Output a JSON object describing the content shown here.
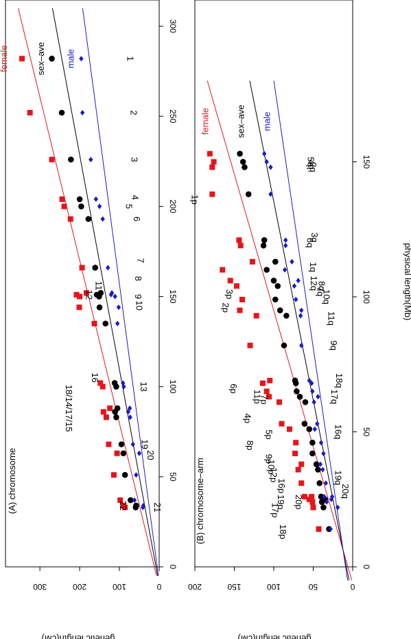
{
  "figure": {
    "xlabel": "physical length(Mb)",
    "ylabel": "genetic length(cM)"
  },
  "colors": {
    "female": "#e8141b",
    "sex_ave": "#000000",
    "male": "#1a1acc"
  },
  "legend": {
    "female": "female",
    "sex_ave": "sex–ave",
    "male": "male"
  },
  "chart_data": [
    {
      "type": "scatter",
      "title": "(A) chromosome",
      "xlabel": "physical length(Mb)",
      "ylabel": "genetic length(cM)",
      "xlim": [
        0,
        310
      ],
      "ylim": [
        0,
        390
      ],
      "xticks": [
        0,
        50,
        100,
        150,
        200,
        250,
        300
      ],
      "yticks": [
        0,
        100,
        200,
        300
      ],
      "series": [
        {
          "name": "female",
          "marker": "square",
          "fit": [
            12,
            1.105
          ],
          "x": [
            282,
            252,
            226,
            204,
            200,
            193,
            166,
            151,
            150,
            152,
            144,
            135,
            102,
            100,
            88,
            86,
            83,
            68,
            63,
            51,
            37,
            34,
            33
          ],
          "y": [
            345,
            325,
            270,
            244,
            239,
            223,
            194,
            208,
            200,
            183,
            201,
            163,
            148,
            142,
            124,
            140,
            133,
            127,
            106,
            114,
            98,
            90,
            86
          ]
        },
        {
          "name": "sex_ave",
          "marker": "circle",
          "fit": [
            8,
            0.84
          ],
          "x": [
            282,
            252,
            226,
            204,
            200,
            193,
            166,
            151,
            150,
            152,
            144,
            135,
            102,
            100,
            88,
            86,
            83,
            68,
            63,
            51,
            37,
            34,
            33
          ],
          "y": [
            270,
            245,
            222,
            200,
            196,
            178,
            161,
            157,
            151,
            147,
            150,
            135,
            112,
            108,
            105,
            111,
            108,
            95,
            90,
            86,
            72,
            58,
            59
          ]
        },
        {
          "name": "male",
          "marker": "diamond",
          "fit": [
            5,
            0.605
          ],
          "x": [
            282,
            252,
            226,
            204,
            200,
            193,
            166,
            151,
            150,
            152,
            144,
            135,
            102,
            100,
            88,
            86,
            83,
            68,
            63,
            51,
            37,
            34,
            33
          ],
          "y": [
            196,
            193,
            172,
            159,
            150,
            142,
            129,
            121,
            111,
            119,
            102,
            105,
            91,
            89,
            74,
            78,
            73,
            66,
            50,
            58,
            62,
            40,
            41
          ]
        }
      ],
      "point_labels": [
        {
          "text": "1",
          "x": 282,
          "y": 80,
          "flip": true
        },
        {
          "text": "2",
          "x": 252,
          "y": 72,
          "flip": true
        },
        {
          "text": "3",
          "x": 226,
          "y": 70,
          "flip": true
        },
        {
          "text": "4",
          "x": 205,
          "y": 68,
          "flip": true
        },
        {
          "text": "5",
          "x": 200,
          "y": 84,
          "flip": true
        },
        {
          "text": "6",
          "x": 193,
          "y": 64,
          "flip": true
        },
        {
          "text": "7",
          "x": 170,
          "y": 54,
          "flip": true
        },
        {
          "text": "8",
          "x": 160,
          "y": 60,
          "flip": true
        },
        {
          "text": "9",
          "x": 150,
          "y": 60,
          "flip": true
        },
        {
          "text": "10",
          "x": 145,
          "y": 58,
          "flip": true
        },
        {
          "text": "11",
          "x": 156,
          "y": 160,
          "flip": true
        },
        {
          "text": "12",
          "x": 151,
          "y": 184,
          "flip": true
        },
        {
          "text": "13",
          "x": 100,
          "y": 47,
          "flip": true
        },
        {
          "text": "16",
          "x": 105,
          "y": 169,
          "flip": true
        },
        {
          "text": "18/14/17/15",
          "x": 88,
          "y": 235,
          "flip": true
        },
        {
          "text": "19",
          "x": 68,
          "y": 44,
          "flip": true
        },
        {
          "text": "20",
          "x": 62,
          "y": 29,
          "flip": true
        },
        {
          "text": "21",
          "x": 33,
          "y": 12,
          "flip": true
        },
        {
          "text": "22",
          "x": 34,
          "y": 98,
          "flip": true
        }
      ],
      "legend_labels": [
        {
          "series": "female",
          "x": 282,
          "y": 383
        },
        {
          "series": "sex_ave",
          "x": 282,
          "y": 290
        },
        {
          "series": "male",
          "x": 282,
          "y": 215
        }
      ]
    },
    {
      "type": "scatter",
      "title": "(B) chromosome–arm",
      "xlabel": "physical length(Mb)",
      "ylabel": "genetic length(cM)",
      "xlim": [
        0,
        180
      ],
      "ylim": [
        0,
        200
      ],
      "xticks": [
        0,
        50,
        100,
        150
      ],
      "yticks": [
        0,
        50,
        100,
        150,
        200
      ],
      "series": [
        {
          "name": "female",
          "marker": "square",
          "fit": [
            6,
            0.99
          ],
          "x": [
            153,
            150,
            148,
            138,
            121,
            119,
            113,
            110,
            106,
            104,
            99,
            95,
            93,
            82,
            69,
            68,
            65,
            63,
            61,
            53,
            51,
            46,
            42,
            38,
            36,
            31,
            26,
            26,
            25,
            24,
            22,
            14
          ],
          "y": [
            181,
            176,
            178,
            178,
            144,
            142,
            127,
            165,
            155,
            147,
            140,
            143,
            122,
            130,
            105,
            114,
            109,
            106,
            93,
            90,
            80,
            72,
            73,
            65,
            69,
            65,
            61,
            52,
            55,
            51,
            50,
            43
          ]
        },
        {
          "name": "sex_ave",
          "marker": "circle",
          "fit": [
            8,
            0.68
          ],
          "x": [
            153,
            150,
            148,
            138,
            121,
            119,
            113,
            110,
            106,
            104,
            99,
            95,
            93,
            82,
            69,
            68,
            65,
            63,
            61,
            53,
            51,
            46,
            42,
            38,
            36,
            31,
            26,
            26,
            25,
            24,
            22,
            14
          ],
          "y": [
            143,
            139,
            137,
            132,
            112,
            113,
            98,
            109,
            100,
            95,
            98,
            92,
            84,
            87,
            73,
            72,
            71,
            67,
            60,
            61,
            55,
            51,
            51,
            46,
            44,
            42,
            40,
            40,
            35,
            39,
            37,
            30
          ]
        },
        {
          "name": "male",
          "marker": "diamond",
          "fit": [
            9,
            0.505
          ],
          "x": [
            153,
            150,
            148,
            138,
            121,
            119,
            113,
            110,
            106,
            104,
            99,
            95,
            93,
            82,
            69,
            68,
            65,
            63,
            61,
            53,
            51,
            46,
            42,
            38,
            36,
            31,
            26,
            26,
            25,
            24,
            22,
            14
          ],
          "y": [
            112,
            109,
            104,
            104,
            85,
            85,
            77,
            86,
            69,
            74,
            72,
            65,
            66,
            65,
            55,
            52,
            51,
            44,
            49,
            45,
            48,
            40,
            37,
            41,
            38,
            34,
            36,
            26,
            27,
            33,
            19,
            28
          ]
        }
      ],
      "point_labels": [
        {
          "text": "1p",
          "x": 136,
          "y": 204,
          "flip": true
        },
        {
          "text": "2p",
          "x": 96,
          "y": 165,
          "flip": true
        },
        {
          "text": "3p",
          "x": 101,
          "y": 160,
          "flip": true
        },
        {
          "text": "1q",
          "x": 111,
          "y": 54,
          "flip": true
        },
        {
          "text": "2q",
          "x": 148,
          "y": 54,
          "flip": true
        },
        {
          "text": "3q",
          "x": 122,
          "y": 52,
          "flip": true
        },
        {
          "text": "4q",
          "x": 149,
          "y": 56,
          "flip": true
        },
        {
          "text": "5q",
          "x": 150,
          "y": 57,
          "flip": true
        },
        {
          "text": "6q",
          "x": 120,
          "y": 58,
          "flip": true
        },
        {
          "text": "7q",
          "x": 102,
          "y": 45,
          "flip": true
        },
        {
          "text": "8q",
          "x": 104,
          "y": 43,
          "flip": true
        },
        {
          "text": "10q",
          "x": 100,
          "y": 37,
          "flip": true
        },
        {
          "text": "11q",
          "x": 92,
          "y": 31,
          "flip": true
        },
        {
          "text": "12q",
          "x": 105,
          "y": 53,
          "flip": true
        },
        {
          "text": "9q",
          "x": 82,
          "y": 28,
          "flip": true
        },
        {
          "text": "18q",
          "x": 69,
          "y": 21,
          "flip": true
        },
        {
          "text": "17q",
          "x": 63,
          "y": 27,
          "flip": true
        },
        {
          "text": "16q",
          "x": 50,
          "y": 22,
          "flip": true
        },
        {
          "text": "19q",
          "x": 33,
          "y": 22,
          "flip": true
        },
        {
          "text": "20q",
          "x": 28,
          "y": 13,
          "flip": true
        },
        {
          "text": "6p",
          "x": 66,
          "y": 155,
          "flip": true
        },
        {
          "text": "11p",
          "x": 63,
          "y": 125,
          "flip": true
        },
        {
          "text": "7p",
          "x": 62,
          "y": 116,
          "flip": true
        },
        {
          "text": "4p",
          "x": 55,
          "y": 137,
          "flip": true
        },
        {
          "text": "5p",
          "x": 49,
          "y": 110,
          "flip": true
        },
        {
          "text": "8p",
          "x": 45,
          "y": 134,
          "flip": true
        },
        {
          "text": "9p",
          "x": 40,
          "y": 110,
          "flip": true
        },
        {
          "text": "10p",
          "x": 37,
          "y": 107,
          "flip": true
        },
        {
          "text": "12p",
          "x": 34,
          "y": 104,
          "flip": true
        },
        {
          "text": "16p",
          "x": 30,
          "y": 94,
          "flip": true
        },
        {
          "text": "19p",
          "x": 24,
          "y": 95,
          "flip": true
        },
        {
          "text": "20p",
          "x": 24,
          "y": 72,
          "flip": true
        },
        {
          "text": "17p",
          "x": 21,
          "y": 102,
          "flip": true
        },
        {
          "text": "18p",
          "x": 13,
          "y": 92,
          "flip": true
        }
      ],
      "legend_labels": [
        {
          "series": "female",
          "x": 165,
          "y": 183
        },
        {
          "series": "sex_ave",
          "x": 165,
          "y": 138
        },
        {
          "series": "male",
          "x": 165,
          "y": 105
        }
      ]
    }
  ]
}
